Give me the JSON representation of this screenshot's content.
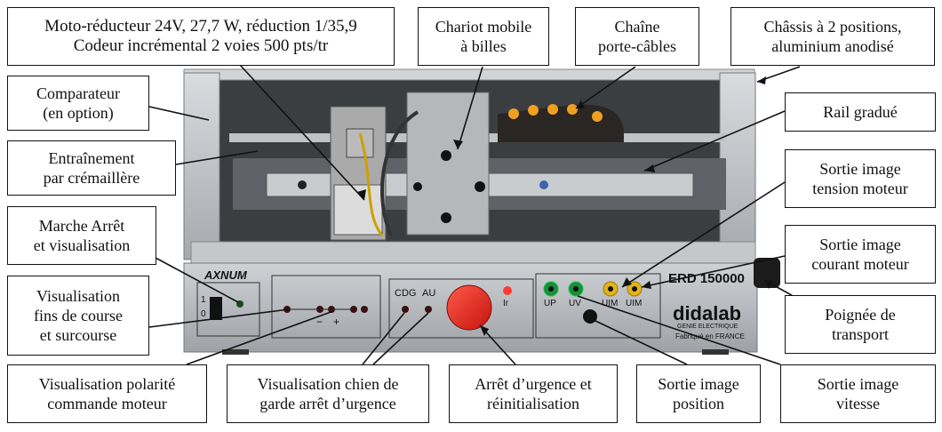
{
  "labels": {
    "motor": "Moto-réducteur 24V,  27,7 W,  réduction 1/35,9\nCodeur incrémental 2 voies 500 pts/tr",
    "chariot": "Chariot mobile\nà billes",
    "chaine": "Chaîne\nporte-câbles",
    "chassis": "Châssis  à 2 positions,\naluminium anodisé",
    "comparateur": "Comparateur\n(en option)",
    "rail": "Rail gradué",
    "entrainement": "Entraînement\npar crémaillère",
    "sortie_tension": "Sortie image\ntension moteur",
    "marche": "Marche Arrêt\net visualisation",
    "sortie_courant": "Sortie image\ncourant moteur",
    "fins": "Visualisation\nfins de course\net surcourse",
    "poignee": "Poignée de\ntransport",
    "polarite": "Visualisation polarité\ncommande moteur",
    "chien": "Visualisation chien de\ngarde arrêt d’urgence",
    "arret": "Arrêt d’urgence et\nréinitialisation",
    "sortie_position": "Sortie image\nposition",
    "sortie_vitesse": "Sortie image\nvitesse"
  },
  "panel": {
    "brand": "AXNUM",
    "model": "ERD 150000",
    "maker": "didalab",
    "maker_sub": "GENIE ELECTRIQUE",
    "fab": "Fabriqué en FRANCE",
    "cdg": "CDG",
    "au": "AU",
    "ir": "Ir",
    "up": "UP",
    "uv": "UV",
    "uim1": "UIM",
    "uim2": "UIM",
    "sw1": "1",
    "sw0": "0",
    "minus": "−",
    "plus": "+"
  },
  "colors": {
    "frame": "#8a8a8a",
    "panel": "#b9bcc0",
    "emergency": "#e8231c",
    "green_jack": "#1f8a3a",
    "yellow_jack": "#e2b31a",
    "chain": "#2a2623",
    "chain_dots": "#f0a020"
  }
}
